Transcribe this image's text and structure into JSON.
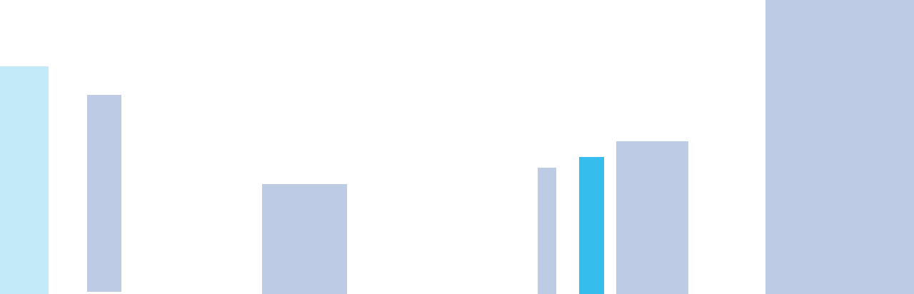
{
  "colors": {
    "background": "#ffffff",
    "light_cyan": "#c2eaf8",
    "periwinkle": "#bdcce4",
    "accent_blue": "#35bded"
  },
  "blocks": [
    {
      "id": "b1",
      "color": "#c2eaf8"
    },
    {
      "id": "b2",
      "color": "#bdcce4"
    },
    {
      "id": "b3",
      "color": "#bdcce4"
    },
    {
      "id": "b4",
      "color": "#bdcce4"
    },
    {
      "id": "b5",
      "color": "#35bded"
    },
    {
      "id": "b6",
      "color": "#bdcce4"
    },
    {
      "id": "b7",
      "color": "#bdcce4"
    }
  ]
}
